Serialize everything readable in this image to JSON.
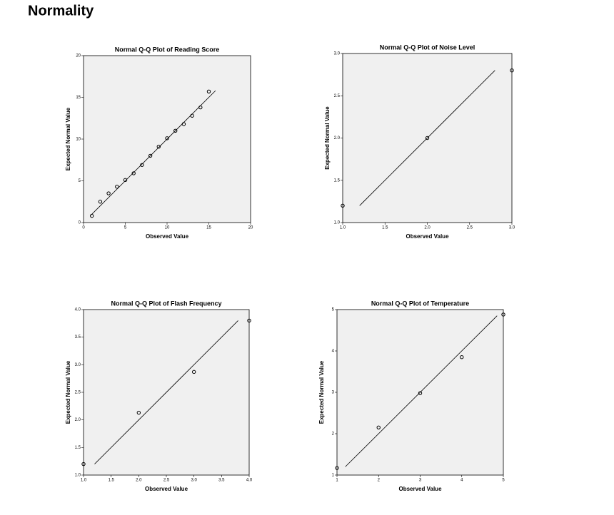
{
  "heading": "Normality",
  "chart_data": [
    {
      "type": "scatter",
      "title": "Normal Q-Q Plot of Reading Score",
      "x_label": "Observed Value",
      "y_label": "Expected Normal Value",
      "xlim": [
        0,
        20
      ],
      "ylim": [
        0,
        20
      ],
      "xticks": [
        0,
        5,
        10,
        15,
        20
      ],
      "yticks": [
        0,
        5,
        10,
        15,
        20
      ],
      "grid": false,
      "x": [
        1,
        2,
        3,
        4,
        5,
        6,
        7,
        8,
        9,
        10,
        11,
        12,
        13,
        14,
        15
      ],
      "values": [
        0.8,
        2.5,
        3.5,
        4.3,
        5.1,
        5.9,
        6.9,
        8.0,
        9.1,
        10.1,
        11.0,
        11.8,
        12.8,
        13.8,
        15.7
      ],
      "reference_line": {
        "x": [
          0.9,
          15.8
        ],
        "y": [
          0.9,
          15.8
        ]
      }
    },
    {
      "type": "scatter",
      "title": "Normal Q-Q Plot of Noise Level",
      "x_label": "Observed Value",
      "y_label": "Expected Normal Value",
      "xlim": [
        1,
        3
      ],
      "ylim": [
        1,
        3
      ],
      "xticks": [
        {
          "value": 1,
          "label": "1.0"
        },
        1.5,
        {
          "value": 2,
          "label": "2.0"
        },
        2.5,
        {
          "value": 3,
          "label": "3.0"
        }
      ],
      "yticks": [
        {
          "value": 1,
          "label": "1.0"
        },
        1.5,
        {
          "value": 2,
          "label": "2.0"
        },
        2.5,
        {
          "value": 3,
          "label": "3.0"
        }
      ],
      "grid": false,
      "x": [
        1,
        2,
        3
      ],
      "values": [
        1.2,
        2.0,
        2.8
      ],
      "reference_line": {
        "x": [
          1.2,
          2.8
        ],
        "y": [
          1.2,
          2.8
        ]
      }
    },
    {
      "type": "scatter",
      "title": "Normal Q-Q Plot of Flash Frequency",
      "x_label": "Observed Value",
      "y_label": "Expected Normal Value",
      "xlim": [
        1,
        4
      ],
      "ylim": [
        1,
        4
      ],
      "xticks": [
        {
          "value": 1,
          "label": "1.0"
        },
        1.5,
        {
          "value": 2,
          "label": "2.0"
        },
        2.5,
        {
          "value": 3,
          "label": "3.0"
        },
        3.5,
        {
          "value": 4,
          "label": "4.0"
        }
      ],
      "yticks": [
        {
          "value": 1,
          "label": "1.0"
        },
        1.5,
        {
          "value": 2,
          "label": "2.0"
        },
        2.5,
        {
          "value": 3,
          "label": "3.0"
        },
        3.5,
        {
          "value": 4,
          "label": "4.0"
        }
      ],
      "grid": false,
      "x": [
        1,
        2,
        3,
        4
      ],
      "values": [
        1.2,
        2.13,
        2.87,
        3.8
      ],
      "reference_line": {
        "x": [
          1.2,
          3.8
        ],
        "y": [
          1.2,
          3.8
        ]
      }
    },
    {
      "type": "scatter",
      "title": "Normal Q-Q Plot of Temperature",
      "x_label": "Observed Value",
      "y_label": "Expected Normal Value",
      "xlim": [
        1,
        5
      ],
      "ylim": [
        1,
        5
      ],
      "xticks": [
        1,
        2,
        3,
        4,
        5
      ],
      "yticks": [
        1,
        2,
        3,
        4,
        5
      ],
      "grid": false,
      "x": [
        1,
        2,
        3,
        4,
        5
      ],
      "values": [
        1.17,
        2.15,
        2.98,
        3.85,
        4.88
      ],
      "reference_line": {
        "x": [
          1.2,
          4.85
        ],
        "y": [
          1.2,
          4.85
        ]
      }
    }
  ]
}
